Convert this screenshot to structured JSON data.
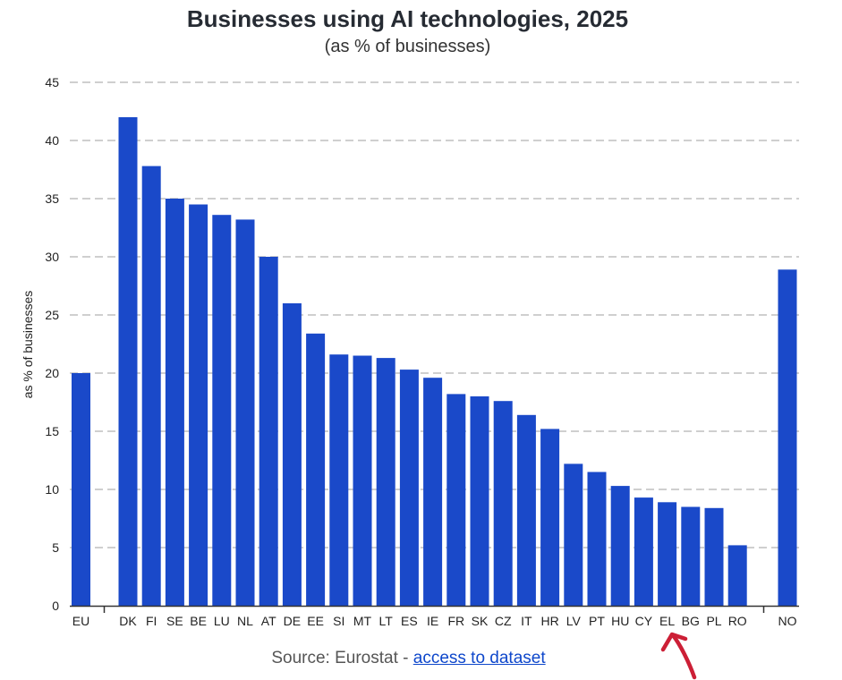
{
  "chart_data": {
    "type": "bar",
    "title": "Businesses using AI technologies, 2025",
    "subtitle": "(as % of businesses)",
    "ylabel": "as % of businesses",
    "xlabel": "",
    "ylim": [
      0,
      45
    ],
    "yticks": [
      0,
      5,
      10,
      15,
      20,
      25,
      30,
      35,
      40,
      45
    ],
    "grid": true,
    "bar_color": "#1a49c9",
    "categories": [
      "EU",
      "DK",
      "FI",
      "SE",
      "BE",
      "LU",
      "NL",
      "AT",
      "DE",
      "EE",
      "SI",
      "MT",
      "LT",
      "ES",
      "IE",
      "FR",
      "SK",
      "CZ",
      "IT",
      "HR",
      "LV",
      "PT",
      "HU",
      "CY",
      "EL",
      "BG",
      "PL",
      "RO",
      "NO"
    ],
    "values": [
      20.0,
      42.0,
      37.8,
      35.0,
      34.5,
      33.6,
      33.2,
      30.0,
      26.0,
      23.4,
      21.6,
      21.5,
      21.3,
      20.3,
      19.6,
      18.2,
      18.0,
      17.6,
      16.4,
      15.2,
      12.2,
      11.5,
      10.3,
      9.3,
      8.9,
      8.5,
      8.4,
      5.2,
      28.9
    ]
  },
  "source": {
    "prefix": "Source: Eurostat - ",
    "link_text": "access to dataset"
  },
  "annotation": {
    "color": "#cc1f36"
  }
}
